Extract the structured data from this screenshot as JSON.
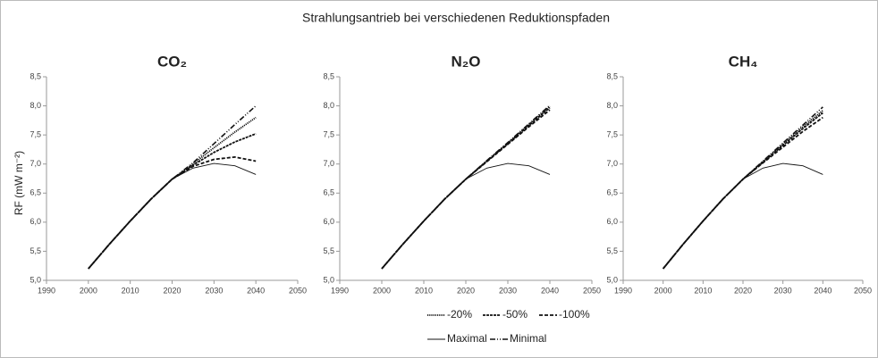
{
  "title": "Strahlungsantrieb bei verschiedenen Reduktionspfaden",
  "ylabel": "RF (mW m⁻²)",
  "chart_data": [
    {
      "type": "line",
      "title": "CO₂",
      "x": [
        2000,
        2005,
        2010,
        2015,
        2020,
        2025,
        2030,
        2035,
        2040
      ],
      "xlim": [
        1990,
        2050
      ],
      "xticks": [
        1990,
        2000,
        2010,
        2020,
        2030,
        2040,
        2050
      ],
      "ylim": [
        5,
        8.5
      ],
      "yticks": [
        {
          "value": 5,
          "label": "5,0"
        },
        {
          "value": 5.5,
          "label": "5,5"
        },
        {
          "value": 6,
          "label": "6,0"
        },
        {
          "value": 6.5,
          "label": "6,5"
        },
        {
          "value": 7,
          "label": "7,0"
        },
        {
          "value": 7.5,
          "label": "7,5"
        },
        {
          "value": 8,
          "label": "8,0"
        },
        {
          "value": 8.5,
          "label": "8,5"
        }
      ],
      "series": [
        {
          "name": "-20%",
          "color": "#111111",
          "dash": "1.2,1",
          "width": 1.8,
          "values": [
            5.2,
            5.62,
            6.02,
            6.4,
            6.74,
            7.0,
            7.28,
            7.55,
            7.8
          ]
        },
        {
          "name": "-50%",
          "color": "#111111",
          "dash": "3,1",
          "width": 1.8,
          "values": [
            5.2,
            5.62,
            6.02,
            6.4,
            6.74,
            6.98,
            7.2,
            7.38,
            7.52
          ]
        },
        {
          "name": "-100%",
          "color": "#111111",
          "dash": "4,2",
          "width": 1.8,
          "values": [
            5.2,
            5.62,
            6.02,
            6.4,
            6.74,
            6.96,
            7.08,
            7.12,
            7.05
          ]
        },
        {
          "name": "Maximal",
          "color": "#111111",
          "dash": "none",
          "width": 0.9,
          "values": [
            5.2,
            5.62,
            6.02,
            6.4,
            6.74,
            6.93,
            7.01,
            6.97,
            6.82
          ]
        },
        {
          "name": "Minimal",
          "color": "#111111",
          "dash": "6,2,1,2,1,2",
          "width": 1.6,
          "values": [
            5.2,
            5.62,
            6.02,
            6.4,
            6.74,
            7.02,
            7.35,
            7.68,
            8.0
          ]
        }
      ]
    },
    {
      "type": "line",
      "title": "N₂O",
      "x": [
        2000,
        2005,
        2010,
        2015,
        2020,
        2025,
        2030,
        2035,
        2040
      ],
      "xlim": [
        1990,
        2050
      ],
      "xticks": [
        1990,
        2000,
        2010,
        2020,
        2030,
        2040,
        2050
      ],
      "ylim": [
        5,
        8.5
      ],
      "yticks": [
        {
          "value": 5,
          "label": "5,0"
        },
        {
          "value": 5.5,
          "label": "5,5"
        },
        {
          "value": 6,
          "label": "6,0"
        },
        {
          "value": 6.5,
          "label": "6,5"
        },
        {
          "value": 7,
          "label": "7,0"
        },
        {
          "value": 7.5,
          "label": "7,5"
        },
        {
          "value": 8,
          "label": "8,0"
        },
        {
          "value": 8.5,
          "label": "8,5"
        }
      ],
      "series": [
        {
          "color": "#111111",
          "dash": "1.2,1",
          "width": 1.8,
          "values": [
            5.2,
            5.62,
            6.02,
            6.4,
            6.74,
            7.05,
            7.36,
            7.68,
            7.99
          ]
        },
        {
          "color": "#111111",
          "dash": "3,1",
          "width": 1.8,
          "values": [
            5.2,
            5.62,
            6.02,
            6.4,
            6.74,
            7.05,
            7.35,
            7.66,
            7.97
          ]
        },
        {
          "color": "#111111",
          "dash": "4,2",
          "width": 1.8,
          "values": [
            5.2,
            5.62,
            6.02,
            6.4,
            6.74,
            7.04,
            7.34,
            7.64,
            7.93
          ]
        },
        {
          "color": "#111111",
          "dash": "none",
          "width": 0.9,
          "values": [
            5.2,
            5.62,
            6.02,
            6.4,
            6.74,
            6.93,
            7.01,
            6.97,
            6.82
          ]
        },
        {
          "color": "#111111",
          "dash": "6,2,1,2,1,2",
          "width": 1.6,
          "values": [
            5.2,
            5.62,
            6.02,
            6.4,
            6.74,
            7.06,
            7.37,
            7.69,
            8.01
          ]
        }
      ]
    },
    {
      "type": "line",
      "title": "CH₄",
      "x": [
        2000,
        2005,
        2010,
        2015,
        2020,
        2025,
        2030,
        2035,
        2040
      ],
      "xlim": [
        1990,
        2050
      ],
      "xticks": [
        1990,
        2000,
        2010,
        2020,
        2030,
        2040,
        2050
      ],
      "ylim": [
        5,
        8.5
      ],
      "yticks": [
        {
          "value": 5,
          "label": "5,0"
        },
        {
          "value": 5.5,
          "label": "5,5"
        },
        {
          "value": 6,
          "label": "6,0"
        },
        {
          "value": 6.5,
          "label": "6,5"
        },
        {
          "value": 7,
          "label": "7,0"
        },
        {
          "value": 7.5,
          "label": "7,5"
        },
        {
          "value": 8,
          "label": "8,0"
        },
        {
          "value": 8.5,
          "label": "8,5"
        }
      ],
      "series": [
        {
          "color": "#111111",
          "dash": "1.2,1",
          "width": 1.8,
          "values": [
            5.2,
            5.62,
            6.02,
            6.4,
            6.74,
            7.04,
            7.34,
            7.64,
            7.92
          ]
        },
        {
          "color": "#111111",
          "dash": "3,1",
          "width": 1.8,
          "values": [
            5.2,
            5.62,
            6.02,
            6.4,
            6.74,
            7.03,
            7.32,
            7.61,
            7.88
          ]
        },
        {
          "color": "#111111",
          "dash": "4,2",
          "width": 1.8,
          "values": [
            5.2,
            5.62,
            6.02,
            6.4,
            6.74,
            7.02,
            7.29,
            7.56,
            7.8
          ]
        },
        {
          "color": "#111111",
          "dash": "none",
          "width": 0.9,
          "values": [
            5.2,
            5.62,
            6.02,
            6.4,
            6.74,
            6.93,
            7.01,
            6.97,
            6.82
          ]
        },
        {
          "color": "#111111",
          "dash": "6,2,1,2,1,2",
          "width": 1.6,
          "values": [
            5.2,
            5.62,
            6.02,
            6.4,
            6.74,
            7.05,
            7.36,
            7.67,
            7.98
          ]
        }
      ]
    }
  ]
}
